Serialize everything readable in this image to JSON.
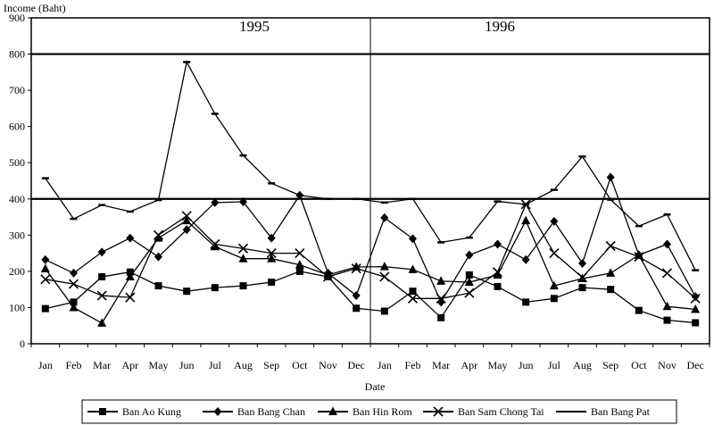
{
  "chart_data": {
    "type": "line",
    "ylabel": "Income (Baht)",
    "xlabel": "Date",
    "ylim": [
      0,
      900
    ],
    "yticks": [
      0,
      100,
      200,
      300,
      400,
      500,
      600,
      700,
      800,
      900
    ],
    "gridlines_y": [
      400,
      800
    ],
    "periods": [
      "1995",
      "1996"
    ],
    "categories": [
      "Jan",
      "Feb",
      "Mar",
      "Apr",
      "May",
      "Jun",
      "Jul",
      "Aug",
      "Sep",
      "Oct",
      "Nov",
      "Dec",
      "Jan",
      "Feb",
      "Mar",
      "Apr",
      "May",
      "Jun",
      "Jul",
      "Aug",
      "Sep",
      "Oct",
      "Nov",
      "Dec"
    ],
    "legend_position": "bottom",
    "series": [
      {
        "name": "Ban Ao Kung",
        "marker": "square",
        "values": [
          97,
          115,
          185,
          198,
          160,
          145,
          155,
          160,
          170,
          200,
          185,
          98,
          90,
          145,
          72,
          190,
          158,
          115,
          125,
          155,
          150,
          92,
          65,
          58
        ]
      },
      {
        "name": "Ban Bang Chan",
        "marker": "diamond",
        "values": [
          232,
          195,
          253,
          292,
          240,
          315,
          390,
          392,
          292,
          410,
          195,
          133,
          348,
          290,
          115,
          245,
          275,
          232,
          338,
          222,
          460,
          245,
          275,
          130
        ]
      },
      {
        "name": "Ban Hin Rom",
        "marker": "triangle",
        "values": [
          207,
          100,
          57,
          185,
          292,
          340,
          268,
          235,
          235,
          218,
          190,
          212,
          213,
          205,
          173,
          170,
          190,
          340,
          160,
          180,
          195,
          245,
          103,
          95
        ]
      },
      {
        "name": "Ban Sam Chong Tai",
        "marker": "x",
        "values": [
          178,
          165,
          133,
          128,
          300,
          353,
          275,
          263,
          250,
          250,
          185,
          208,
          185,
          125,
          125,
          140,
          198,
          385,
          250,
          183,
          270,
          240,
          195,
          125
        ]
      },
      {
        "name": "Ban Bang Pat",
        "marker": "dash",
        "values": [
          457,
          345,
          383,
          365,
          397,
          778,
          635,
          520,
          443,
          410,
          400,
          400,
          390,
          400,
          280,
          293,
          393,
          385,
          425,
          517,
          398,
          325,
          357,
          203
        ]
      }
    ]
  }
}
